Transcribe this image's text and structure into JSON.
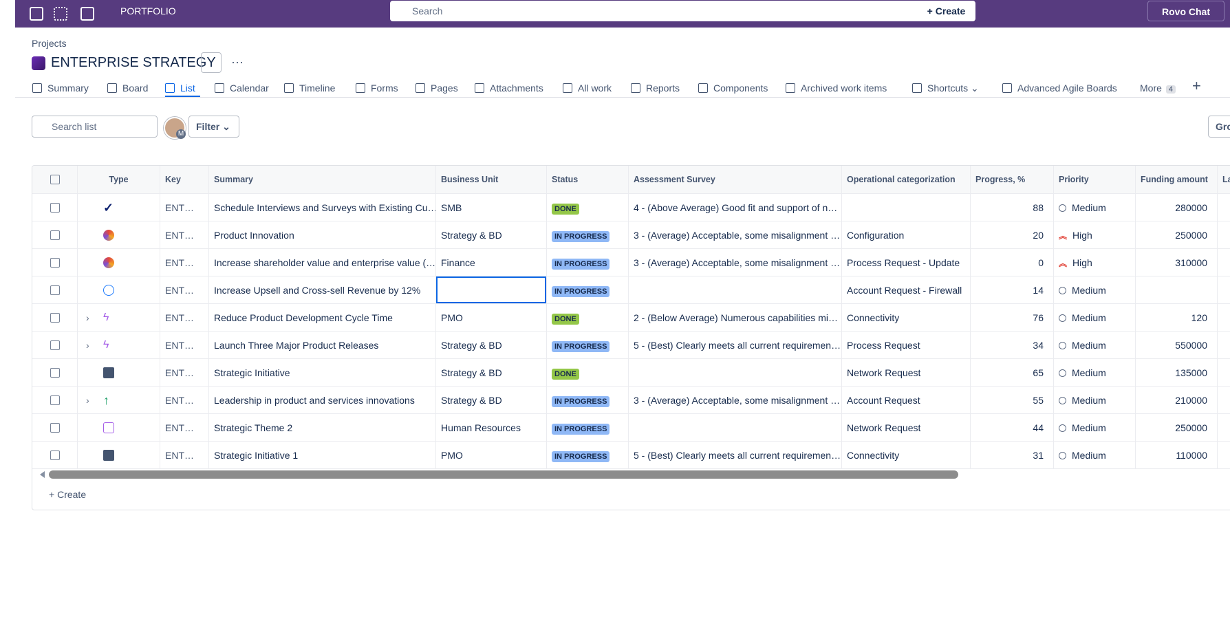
{
  "topbar": {
    "app": "PORTFOLIO",
    "search": "Search",
    "create": "Create",
    "rovo": "Rovo Chat"
  },
  "header": {
    "breadcrumb": "Projects",
    "title": "ENTERPRISE STRATEGY"
  },
  "tabs": [
    "Summary",
    "Board",
    "List",
    "Calendar",
    "Timeline",
    "Forms",
    "Pages",
    "Attachments",
    "All work",
    "Reports",
    "Components",
    "Archived work items",
    "Shortcuts",
    "Advanced Agile Boards",
    "More"
  ],
  "tabs_more_count": 4,
  "toolbar": {
    "search": "Search list",
    "avatar": "M",
    "filter": "Filter",
    "group": "Gro"
  },
  "table": {
    "columns": [
      "Type",
      "Key",
      "Summary",
      "Business Unit",
      "Status",
      "Assessment Survey",
      "Operational categorization",
      "Progress, %",
      "Priority",
      "Funding amount",
      "La"
    ],
    "rows": [
      {
        "key": "ENT…",
        "summary": "Schedule Interviews and Surveys with Existing Cu…",
        "business_unit": "SMB",
        "status": "DONE",
        "assessment_survey": "4 - (Above Average) Good fit and support of n…",
        "operational_categorization": null,
        "progress": 88,
        "priority": "Medium",
        "funding_amount": 280000
      },
      {
        "key": "ENT…",
        "summary": "Product Innovation",
        "business_unit": "Strategy & BD",
        "status": "IN PROGRESS",
        "assessment_survey": "3 - (Average) Acceptable, some misalignment …",
        "operational_categorization": "Configuration",
        "progress": 20,
        "priority": "High",
        "funding_amount": 250000
      },
      {
        "key": "ENT…",
        "summary": "Increase shareholder value and enterprise value (…",
        "business_unit": "Finance",
        "status": "IN PROGRESS",
        "assessment_survey": "3 - (Average) Acceptable, some misalignment …",
        "operational_categorization": "Process Request - Update",
        "progress": 0,
        "priority": "High",
        "funding_amount": 310000
      },
      {
        "key": "ENT…",
        "summary": "Increase Upsell and Cross-sell Revenue by 12%",
        "business_unit": null,
        "status": "IN PROGRESS",
        "assessment_survey": null,
        "operational_categorization": "Account Request - Firewall",
        "progress": 14,
        "priority": "Medium",
        "funding_amount": null
      },
      {
        "key": "ENT…",
        "summary": "Reduce Product Development Cycle Time",
        "business_unit": "PMO",
        "status": "DONE",
        "assessment_survey": "2 - (Below Average) Numerous capabilities mi…",
        "operational_categorization": "Connectivity",
        "progress": 76,
        "priority": "Medium",
        "funding_amount": 120
      },
      {
        "key": "ENT…",
        "summary": "Launch Three Major Product Releases",
        "business_unit": "Strategy & BD",
        "status": "IN PROGRESS",
        "assessment_survey": "5 - (Best) Clearly meets all current requiremen…",
        "operational_categorization": "Process Request",
        "progress": 34,
        "priority": "Medium",
        "funding_amount": 550000
      },
      {
        "key": "ENT…",
        "summary": "Strategic Initiative",
        "business_unit": "Strategy & BD",
        "status": "DONE",
        "assessment_survey": null,
        "operational_categorization": "Network Request",
        "progress": 65,
        "priority": "Medium",
        "funding_amount": 135000
      },
      {
        "key": "ENT…",
        "summary": "Leadership in product and services innovations",
        "business_unit": "Strategy & BD",
        "status": "IN PROGRESS",
        "assessment_survey": "3 - (Average) Acceptable, some misalignment …",
        "operational_categorization": "Account Request",
        "progress": 55,
        "priority": "Medium",
        "funding_amount": 210000
      },
      {
        "key": "ENT…",
        "summary": "Strategic Theme 2",
        "business_unit": "Human Resources",
        "status": "IN PROGRESS",
        "assessment_survey": null,
        "operational_categorization": "Network Request",
        "progress": 44,
        "priority": "Medium",
        "funding_amount": 250000
      },
      {
        "key": "ENT…",
        "summary": "Strategic Initiative 1",
        "business_unit": "PMO",
        "status": "IN PROGRESS",
        "assessment_survey": "5 - (Best) Clearly meets all current requiremen…",
        "operational_categorization": "Connectivity",
        "progress": 31,
        "priority": "Medium",
        "funding_amount": 110000
      }
    ],
    "create": "Create"
  }
}
